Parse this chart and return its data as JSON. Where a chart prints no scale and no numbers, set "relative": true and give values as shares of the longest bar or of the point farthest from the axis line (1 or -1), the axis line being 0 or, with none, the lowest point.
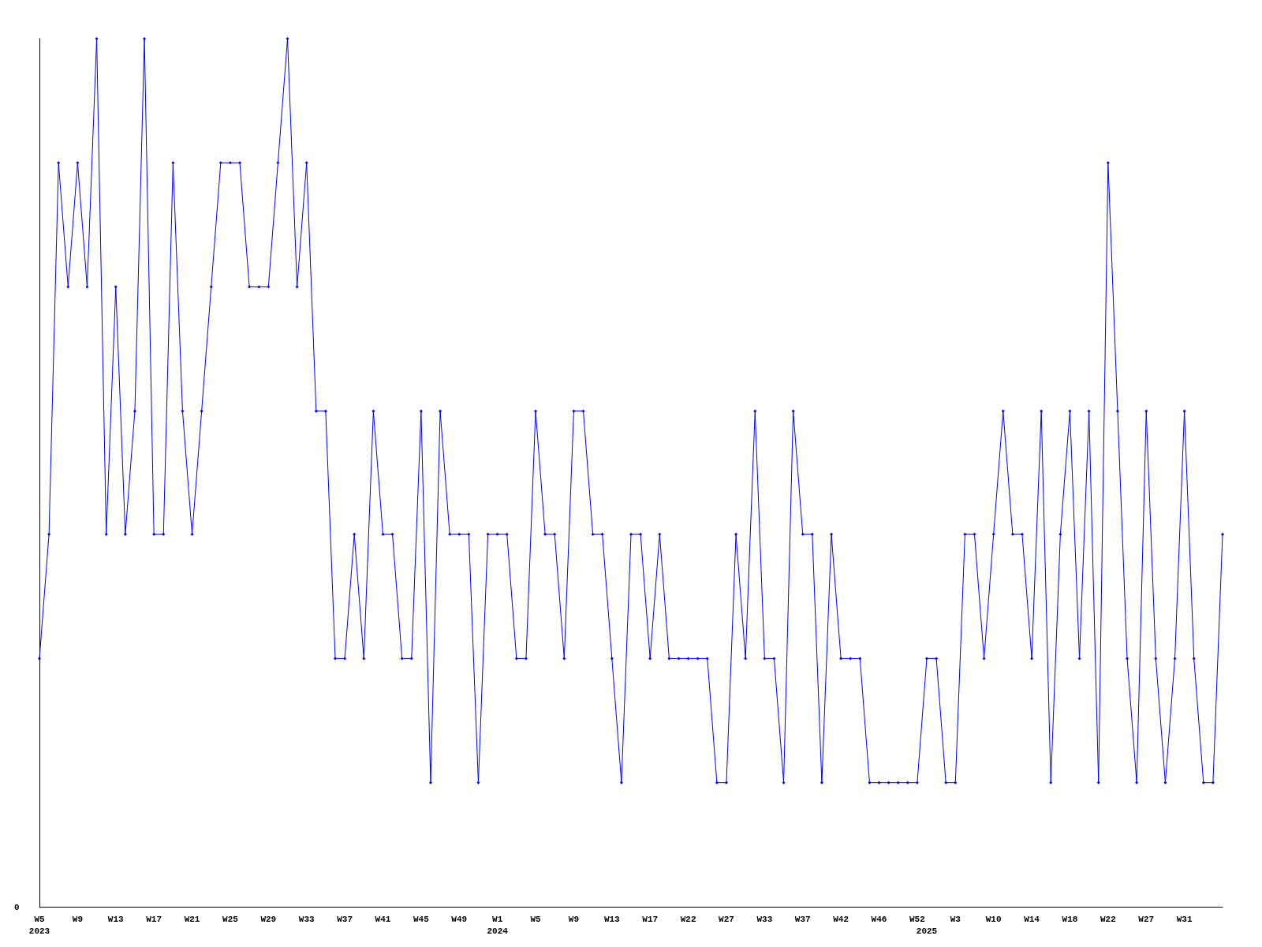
{
  "chart_data": {
    "type": "line",
    "relative": true,
    "categories": [
      "W5\n2023",
      null,
      null,
      null,
      "W9",
      null,
      null,
      null,
      "W13",
      null,
      null,
      null,
      "W17",
      null,
      null,
      null,
      "W21",
      null,
      null,
      null,
      "W25",
      null,
      null,
      null,
      "W29",
      null,
      null,
      null,
      "W33",
      null,
      null,
      null,
      "W37",
      null,
      null,
      null,
      "W41",
      null,
      null,
      null,
      "W45",
      null,
      null,
      null,
      "W49",
      null,
      null,
      null,
      "W1\n2024",
      null,
      null,
      null,
      "W5",
      null,
      null,
      null,
      "W9",
      null,
      null,
      null,
      "W13",
      null,
      null,
      null,
      "W17",
      null,
      null,
      null,
      "W22",
      null,
      null,
      null,
      "W27",
      null,
      null,
      null,
      "W33",
      null,
      null,
      null,
      "W37",
      null,
      null,
      null,
      "W42",
      null,
      null,
      null,
      "W46",
      null,
      null,
      null,
      "W52",
      "\n2025",
      null,
      null,
      "W3",
      null,
      null,
      null,
      "W10",
      null,
      null,
      null,
      "W14",
      null,
      null,
      null,
      "W18",
      null,
      null,
      null,
      "W22",
      null,
      null,
      null,
      "W27",
      null,
      null,
      null,
      "W31",
      null,
      null,
      null,
      null
    ],
    "series": [
      {
        "color": "#0000ff",
        "values": [
          0.286,
          0.429,
          0.857,
          0.714,
          0.857,
          0.714,
          1,
          0.429,
          0.714,
          0.429,
          0.571,
          1,
          0.429,
          0.429,
          0.857,
          0.571,
          0.429,
          0.571,
          0.714,
          0.857,
          0.857,
          0.857,
          0.714,
          0.714,
          0.714,
          0.857,
          1,
          0.714,
          0.857,
          0.571,
          0.571,
          0.286,
          0.286,
          0.429,
          0.286,
          0.571,
          0.429,
          0.429,
          0.286,
          0.286,
          0.571,
          0.143,
          0.571,
          0.429,
          0.429,
          0.429,
          0.143,
          0.429,
          0.429,
          0.429,
          0.286,
          0.286,
          0.571,
          0.429,
          0.429,
          0.286,
          0.571,
          0.571,
          0.429,
          0.429,
          0.286,
          0.143,
          0.429,
          0.429,
          0.286,
          0.429,
          0.286,
          0.286,
          0.286,
          0.286,
          0.286,
          0.143,
          0.143,
          0.429,
          0.286,
          0.571,
          0.286,
          0.286,
          0.143,
          0.571,
          0.429,
          0.429,
          0.143,
          0.429,
          0.286,
          0.286,
          0.286,
          0.143,
          0.143,
          0.143,
          0.143,
          0.143,
          0.143,
          0.286,
          0.286,
          0.143,
          0.143,
          0.429,
          0.429,
          0.286,
          0.429,
          0.571,
          0.429,
          0.429,
          0.286,
          0.571,
          0.143,
          0.429,
          0.571,
          0.286,
          0.571,
          0.143,
          0.857,
          0.571,
          0.286,
          0.143,
          0.571,
          0.286,
          0.143,
          0.286,
          0.571,
          0.286,
          0.143,
          0.143,
          0.429
        ]
      }
    ],
    "annotations": [
      "0"
    ],
    "grid": false,
    "marker": "diamond",
    "line_style": "solid"
  }
}
